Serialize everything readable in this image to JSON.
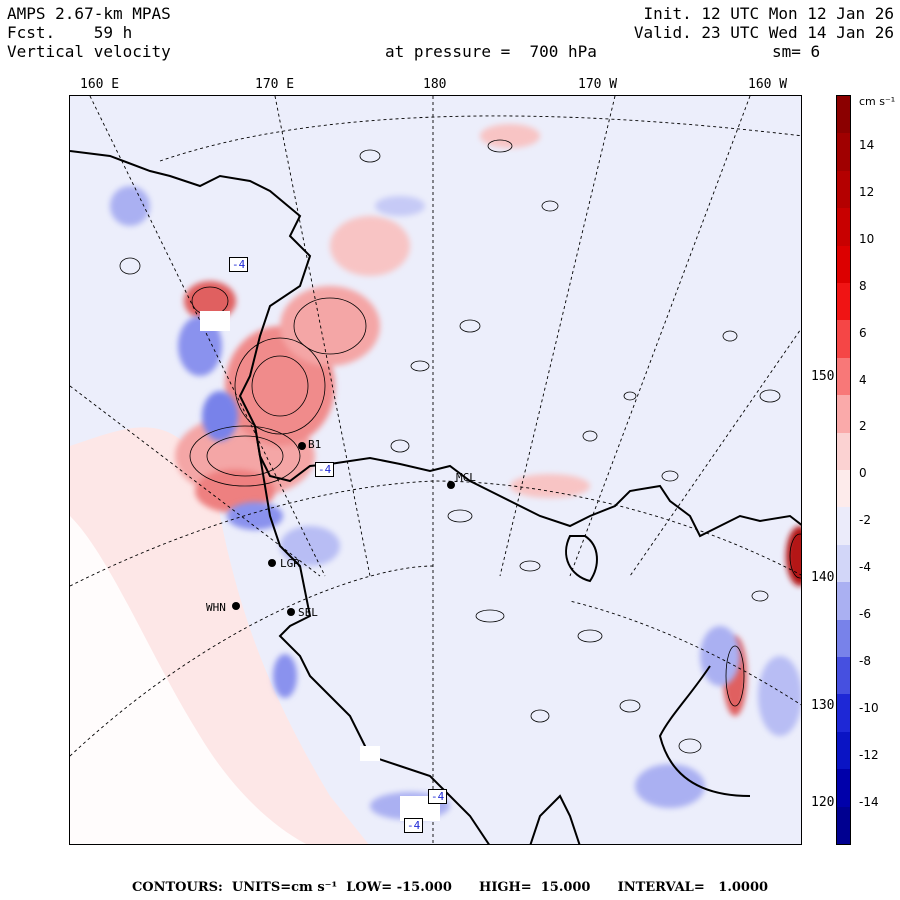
{
  "header": {
    "model": "AMPS 2.67-km MPAS",
    "forecast": "Fcst.    59 h",
    "field": "Vertical velocity",
    "init": "Init. 12 UTC Mon 12 Jan 26",
    "valid": "Valid. 23 UTC Wed 14 Jan 26",
    "pressure": "at pressure =  700 hPa",
    "smoothing": "sm= 6"
  },
  "longitudes": [
    "160 E",
    "170 E",
    "180",
    "170 W",
    "160 W"
  ],
  "latitudes": [
    "150 W",
    "140 W",
    "130 W",
    "120 W"
  ],
  "colorbar": {
    "units": "cm s⁻¹",
    "labels": [
      "14",
      "12",
      "10",
      "8",
      "6",
      "4",
      "2",
      "0",
      "-2",
      "-4",
      "-6",
      "-8",
      "-10",
      "-12",
      "-14"
    ],
    "colors": [
      "#8b0000",
      "#a00000",
      "#b40000",
      "#c80000",
      "#dc0000",
      "#f01414",
      "#f54646",
      "#f87878",
      "#faaaaa",
      "#fbd2d2",
      "#fdebeb",
      "#ebebfa",
      "#d2d6f8",
      "#aab0f2",
      "#7882ea",
      "#4650e0",
      "#1e28d6",
      "#0a14c4",
      "#0000aa",
      "#000090"
    ]
  },
  "stations": [
    {
      "name": "MCL"
    },
    {
      "name": "WHN"
    },
    {
      "name": "SEL"
    },
    {
      "name": "LGR"
    },
    {
      "name": "B1"
    }
  ],
  "contour_labels": [
    "-4",
    "-4",
    "-4",
    "-4"
  ],
  "footer": "CONTOURS:  UNITS=cm s⁻¹  LOW= -15.000      HIGH=  15.000      INTERVAL=   1.0000"
}
